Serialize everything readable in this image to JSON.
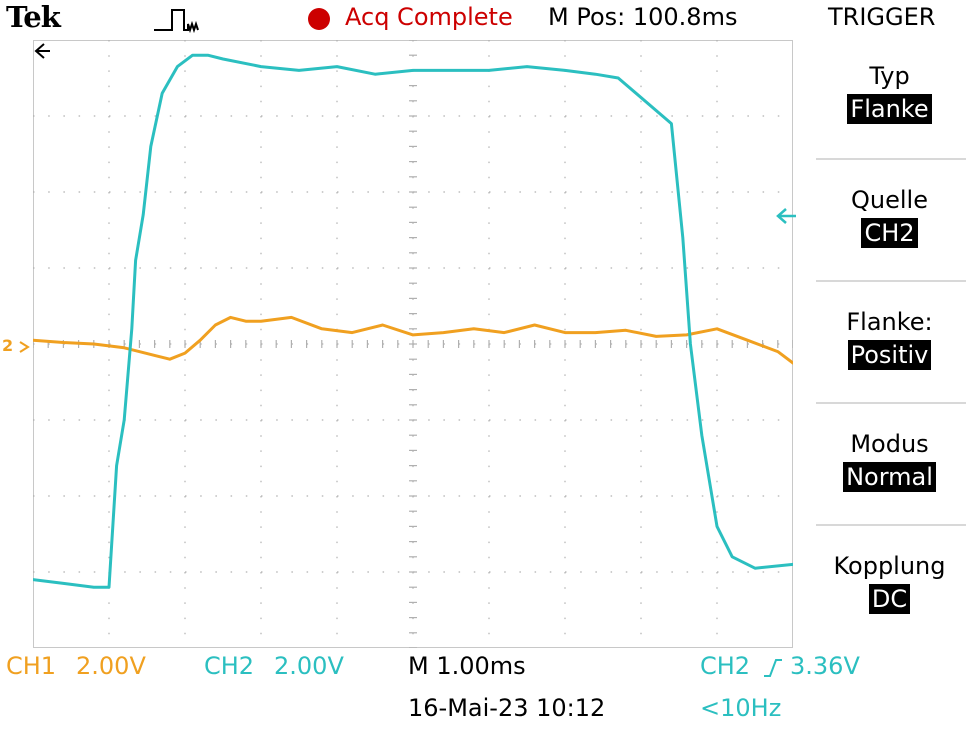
{
  "header": {
    "brand": "Tek",
    "status": "Acq Complete",
    "mpos": "M Pos: 100.8ms",
    "menu_title": "TRIGGER"
  },
  "trigger_menu": [
    {
      "label": "Typ",
      "value": "Flanke"
    },
    {
      "label": "Quelle",
      "value": "CH2"
    },
    {
      "label": "Flanke:",
      "value": "Positiv"
    },
    {
      "label": "Modus",
      "value": "Normal"
    },
    {
      "label": "Kopplung",
      "value": "DC"
    }
  ],
  "readouts": {
    "ch1_label": "CH1",
    "ch1_scale": "2.00V",
    "ch2_label": "CH2",
    "ch2_scale": "2.00V",
    "timebase": "M 1.00ms",
    "trigger_source": "CH2",
    "trigger_level": "3.36V",
    "datetime": "16-Mai-23 10:12",
    "trigger_freq": "<10Hz"
  },
  "markers": {
    "ch2_ground": "2"
  },
  "colors": {
    "ch1": "#f0a020",
    "ch2": "#2bbfc0",
    "status": "#cc0000",
    "grid": "#b0b0b0"
  },
  "chart_data": {
    "type": "line",
    "xlabel": "",
    "ylabel": "",
    "xlim": [
      -5,
      5
    ],
    "ylim": [
      -4,
      4
    ],
    "grid": true,
    "series": [
      {
        "name": "CH1",
        "color": "#f0a020",
        "x": [
          -5,
          -4.6,
          -4.2,
          -3.8,
          -3.4,
          -3.2,
          -3.0,
          -2.8,
          -2.6,
          -2.4,
          -2.2,
          -2.0,
          -1.6,
          -1.2,
          -0.8,
          -0.4,
          0.0,
          0.4,
          0.8,
          1.2,
          1.6,
          2.0,
          2.4,
          2.8,
          3.2,
          3.6,
          4.0,
          4.4,
          4.8,
          5.0
        ],
        "y": [
          0.05,
          0.02,
          0.0,
          -0.05,
          -0.15,
          -0.2,
          -0.12,
          0.05,
          0.25,
          0.35,
          0.3,
          0.3,
          0.35,
          0.2,
          0.15,
          0.25,
          0.12,
          0.15,
          0.2,
          0.15,
          0.25,
          0.15,
          0.15,
          0.18,
          0.1,
          0.12,
          0.2,
          0.05,
          -0.1,
          -0.25
        ]
      },
      {
        "name": "CH2",
        "color": "#2bbfc0",
        "x": [
          -5,
          -4.6,
          -4.2,
          -4.0,
          -3.9,
          -3.8,
          -3.7,
          -3.65,
          -3.55,
          -3.45,
          -3.3,
          -3.1,
          -2.9,
          -2.7,
          -2.5,
          -2.0,
          -1.5,
          -1.0,
          -0.5,
          0.0,
          0.5,
          1.0,
          1.5,
          2.0,
          2.4,
          2.7,
          3.4,
          3.55,
          3.65,
          3.8,
          4.0,
          4.2,
          4.5,
          5.0
        ],
        "y": [
          -3.1,
          -3.15,
          -3.2,
          -3.2,
          -1.6,
          -1.0,
          0.2,
          1.1,
          1.7,
          2.6,
          3.3,
          3.65,
          3.8,
          3.8,
          3.75,
          3.65,
          3.6,
          3.65,
          3.55,
          3.6,
          3.6,
          3.6,
          3.65,
          3.6,
          3.55,
          3.5,
          2.9,
          1.4,
          0.0,
          -1.2,
          -2.4,
          -2.8,
          -2.95,
          -2.9
        ]
      }
    ]
  }
}
